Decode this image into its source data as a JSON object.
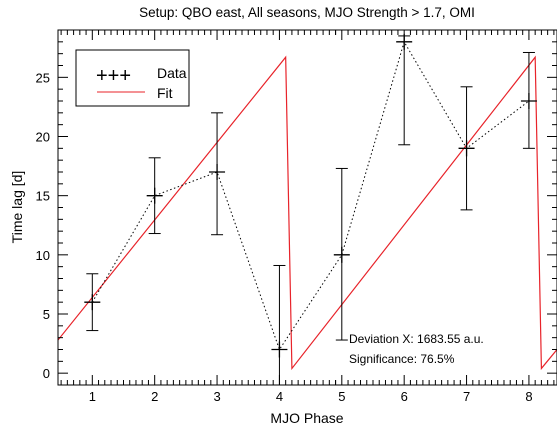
{
  "chart_data": {
    "type": "scatter",
    "title": "Setup: QBO east, All seasons, MJO Strength > 1.7, OMI",
    "xlabel": "MJO Phase",
    "ylabel": "Time lag [d]",
    "xlim": [
      0.45,
      8.45
    ],
    "ylim": [
      -1,
      29
    ],
    "x_ticks": [
      1,
      2,
      3,
      4,
      5,
      6,
      7,
      8
    ],
    "y_ticks": [
      0,
      5,
      10,
      15,
      20,
      25
    ],
    "grid": false,
    "legend_position": "top-left",
    "series": [
      {
        "name": "Data",
        "symbol": "+",
        "line_style": "dotted",
        "color": "#000000",
        "x": [
          1,
          2,
          3,
          4,
          5,
          6,
          7,
          8
        ],
        "y": [
          6,
          15,
          17,
          2,
          10,
          28,
          19,
          23
        ],
        "error_low": [
          3.6,
          11.8,
          11.7,
          -1,
          2.8,
          19.3,
          13.8,
          19
        ],
        "error_high": [
          8.4,
          18.2,
          22,
          9.1,
          17.3,
          28.5,
          24.2,
          27.1
        ]
      },
      {
        "name": "Fit",
        "line_style": "solid",
        "color": "#e8232a",
        "x": [
          0.45,
          4.1,
          4.2,
          8.1,
          8.2,
          8.45
        ],
        "y": [
          2.8,
          26.7,
          0.4,
          26.7,
          0.4,
          2
        ]
      }
    ],
    "legend_symbols": {
      "data": "+++"
    },
    "annotations": [
      "Deviation X: 1683.55 a.u.",
      "Significance: 76.5%"
    ]
  }
}
